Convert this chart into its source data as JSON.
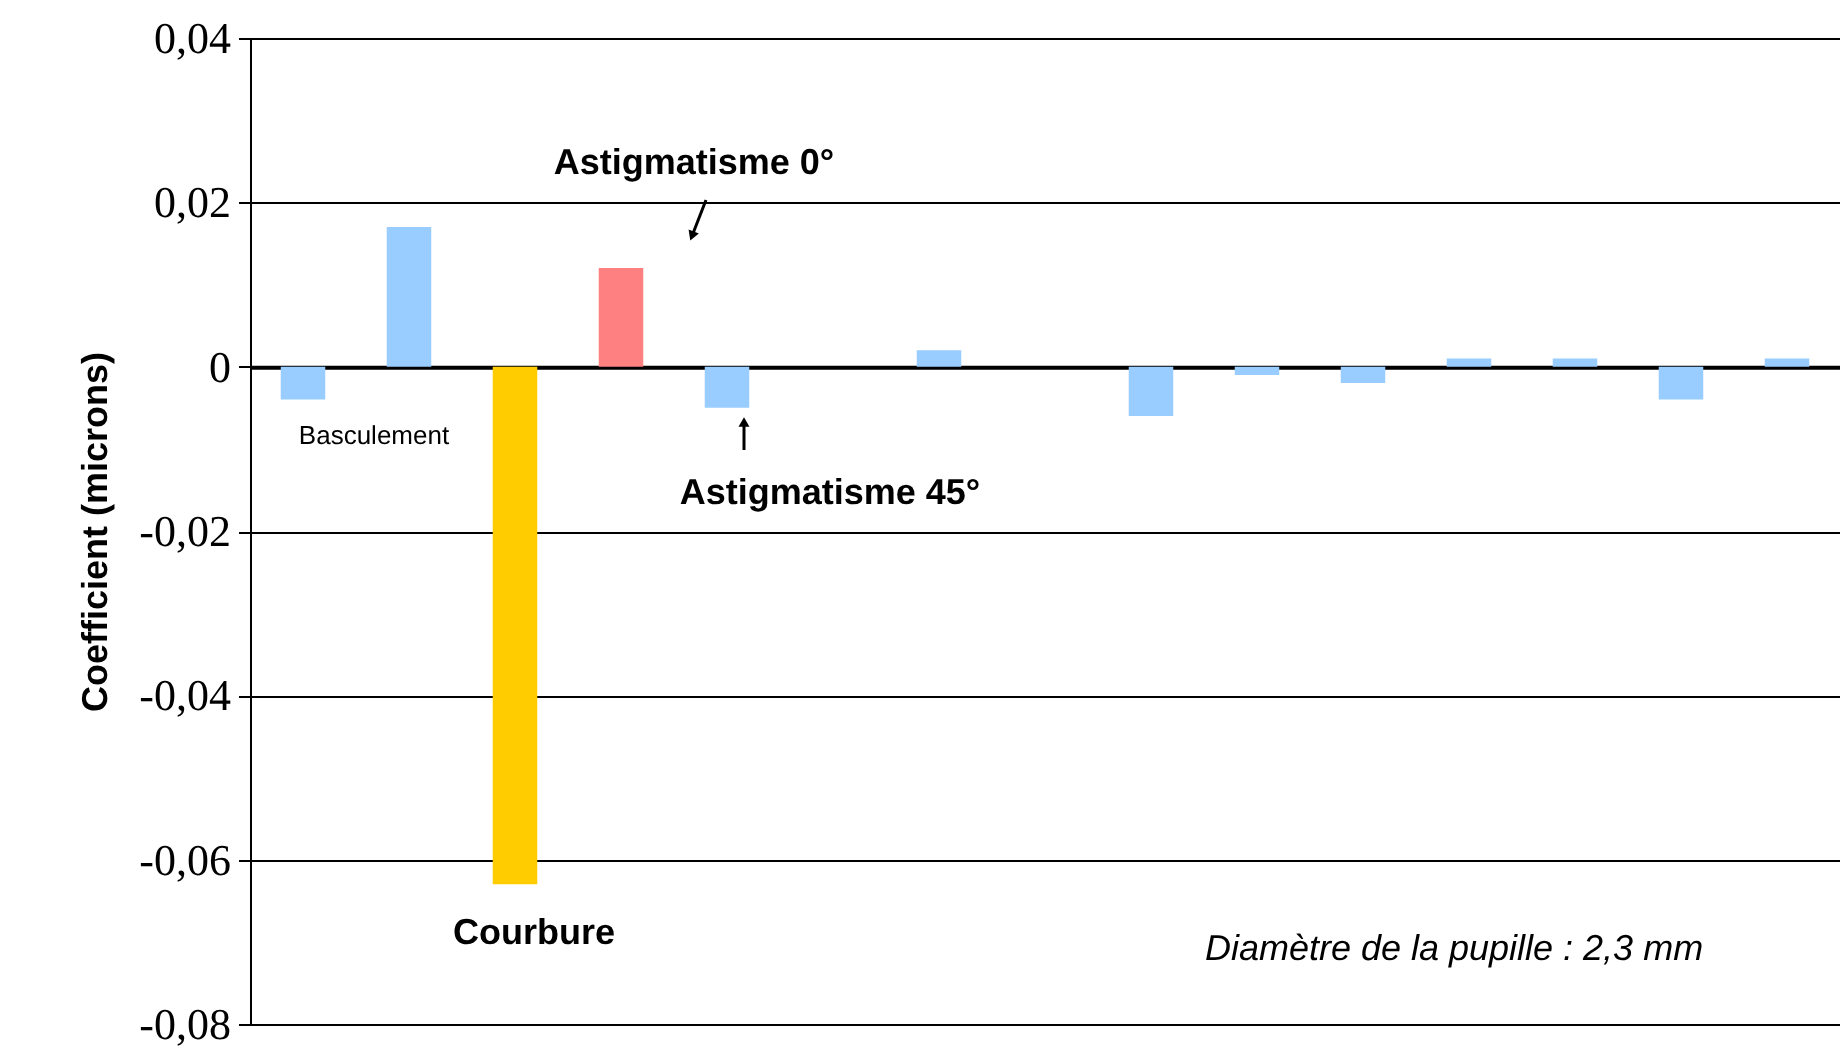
{
  "chart_data": {
    "type": "bar",
    "ylabel": "Coefficient (microns)",
    "categories": [
      null,
      null,
      null,
      null,
      null,
      null,
      null,
      null,
      null,
      null,
      null,
      null,
      null,
      null,
      null
    ],
    "values": [
      -0.004,
      0.017,
      -0.063,
      0.012,
      -0.005,
      null,
      0.002,
      null,
      -0.006,
      -0.001,
      -0.002,
      0.001,
      0.001,
      -0.004,
      0.001
    ],
    "colors": [
      "#99ccff",
      "#99ccff",
      "#ffcc00",
      "#ff8080",
      "#99ccff",
      "#99ccff",
      "#99ccff",
      "#99ccff",
      "#99ccff",
      "#99ccff",
      "#99ccff",
      "#99ccff",
      "#99ccff",
      "#99ccff",
      "#99ccff"
    ],
    "ylim": [
      -0.08,
      0.04
    ],
    "yticks": [
      {
        "value": -0.08,
        "label": "-0,08"
      },
      {
        "value": -0.06,
        "label": "-0,06"
      },
      {
        "value": -0.04,
        "label": "-0,04"
      },
      {
        "value": -0.02,
        "label": "-0,02"
      },
      {
        "value": 0,
        "label": "0"
      },
      {
        "value": 0.02,
        "label": "0,02"
      },
      {
        "value": 0.04,
        "label": "0,04"
      }
    ],
    "grid": "y",
    "annotations": [
      "Basculement",
      "Astigmatisme 0°",
      "Astigmatisme 45°",
      "Courbure",
      "Diamètre de la pupille : 2,3 mm"
    ]
  }
}
